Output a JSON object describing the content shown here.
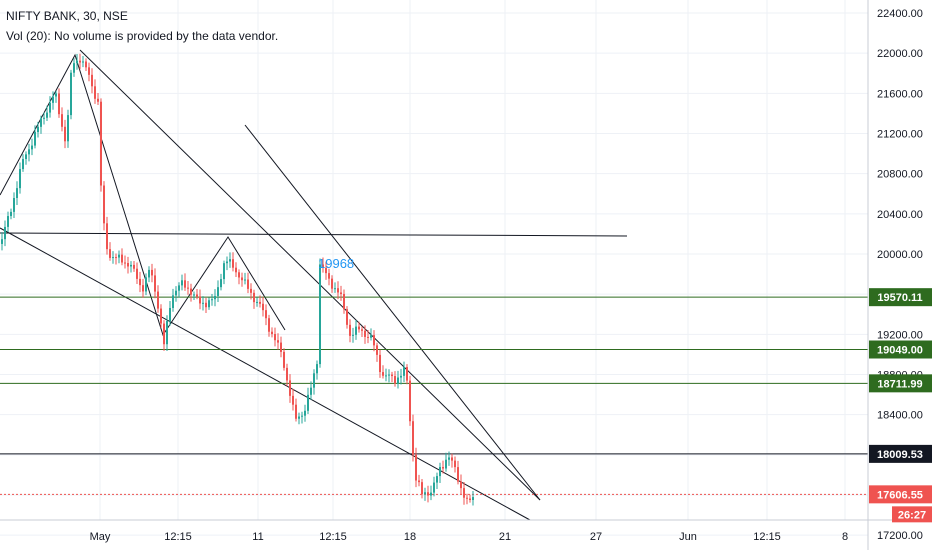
{
  "header": {
    "symbol_line": "NIFTY BANK, 30, NSE",
    "volume_line": "Vol (20): No volume is provided by the data vendor."
  },
  "colors": {
    "up": "#26a69a",
    "down": "#ef5350",
    "trendline": "#131722",
    "level_green": "#2e6b1f",
    "level_dark": "#131722",
    "current_price": "#ef5350",
    "annotation": "#2196f3",
    "grid": "#eef1f6"
  },
  "chart_data": {
    "type": "candlestick",
    "title": "NIFTY BANK, 30, NSE",
    "y_axis": {
      "min": 17000,
      "max": 22500,
      "ticks": [
        17200,
        17600,
        18000,
        18400,
        18800,
        19200,
        19600,
        20000,
        20400,
        20800,
        21200,
        21600,
        22000,
        22400
      ],
      "tick_labels": [
        "17200.00",
        "",
        "",
        "18400.00",
        "18800.00",
        "19200.00",
        "",
        "20000.00",
        "20400.00",
        "20800.00",
        "21200.00",
        "21600.00",
        "22000.00",
        "22400.00"
      ]
    },
    "x_axis": {
      "labels": [
        "May",
        "12:15",
        "11",
        "12:15",
        "18",
        "21",
        "27",
        "Jun",
        "12:15",
        "8"
      ]
    },
    "price_path": [
      [
        0,
        20100
      ],
      [
        10,
        20400
      ],
      [
        22,
        20900
      ],
      [
        40,
        21300
      ],
      [
        55,
        21600
      ],
      [
        66,
        21100
      ],
      [
        72,
        21900
      ],
      [
        80,
        21950
      ],
      [
        88,
        21800
      ],
      [
        98,
        21500
      ],
      [
        102,
        20400
      ],
      [
        108,
        20000
      ],
      [
        118,
        19950
      ],
      [
        130,
        19900
      ],
      [
        142,
        19650
      ],
      [
        150,
        19850
      ],
      [
        158,
        19500
      ],
      [
        164,
        19100
      ],
      [
        172,
        19600
      ],
      [
        180,
        19700
      ],
      [
        190,
        19650
      ],
      [
        200,
        19500
      ],
      [
        215,
        19550
      ],
      [
        225,
        19950
      ],
      [
        235,
        19850
      ],
      [
        245,
        19700
      ],
      [
        255,
        19550
      ],
      [
        262,
        19450
      ],
      [
        272,
        19200
      ],
      [
        282,
        19000
      ],
      [
        288,
        18700
      ],
      [
        295,
        18350
      ],
      [
        305,
        18450
      ],
      [
        312,
        18700
      ],
      [
        318,
        19000
      ],
      [
        320,
        19900
      ],
      [
        328,
        19750
      ],
      [
        340,
        19600
      ],
      [
        350,
        19200
      ],
      [
        360,
        19250
      ],
      [
        372,
        19150
      ],
      [
        382,
        18800
      ],
      [
        395,
        18750
      ],
      [
        406,
        18850
      ],
      [
        410,
        18350
      ],
      [
        415,
        17800
      ],
      [
        422,
        17600
      ],
      [
        432,
        17650
      ],
      [
        440,
        17850
      ],
      [
        448,
        18000
      ],
      [
        455,
        17850
      ],
      [
        462,
        17650
      ],
      [
        468,
        17500
      ],
      [
        474,
        17600
      ]
    ],
    "annotation": {
      "text": "19968",
      "price": 19968
    },
    "horizontal_levels": [
      {
        "label": "19570.11",
        "value": 19570.11,
        "color": "green"
      },
      {
        "label": "19049.00",
        "value": 19049.0,
        "color": "green"
      },
      {
        "label": "18711.99",
        "value": 18711.99,
        "color": "green"
      },
      {
        "label": "18009.53",
        "value": 18009.53,
        "color": "dark"
      }
    ],
    "current_price": {
      "label": "17606.55",
      "value": 17606.55,
      "countdown": "26:27"
    }
  }
}
